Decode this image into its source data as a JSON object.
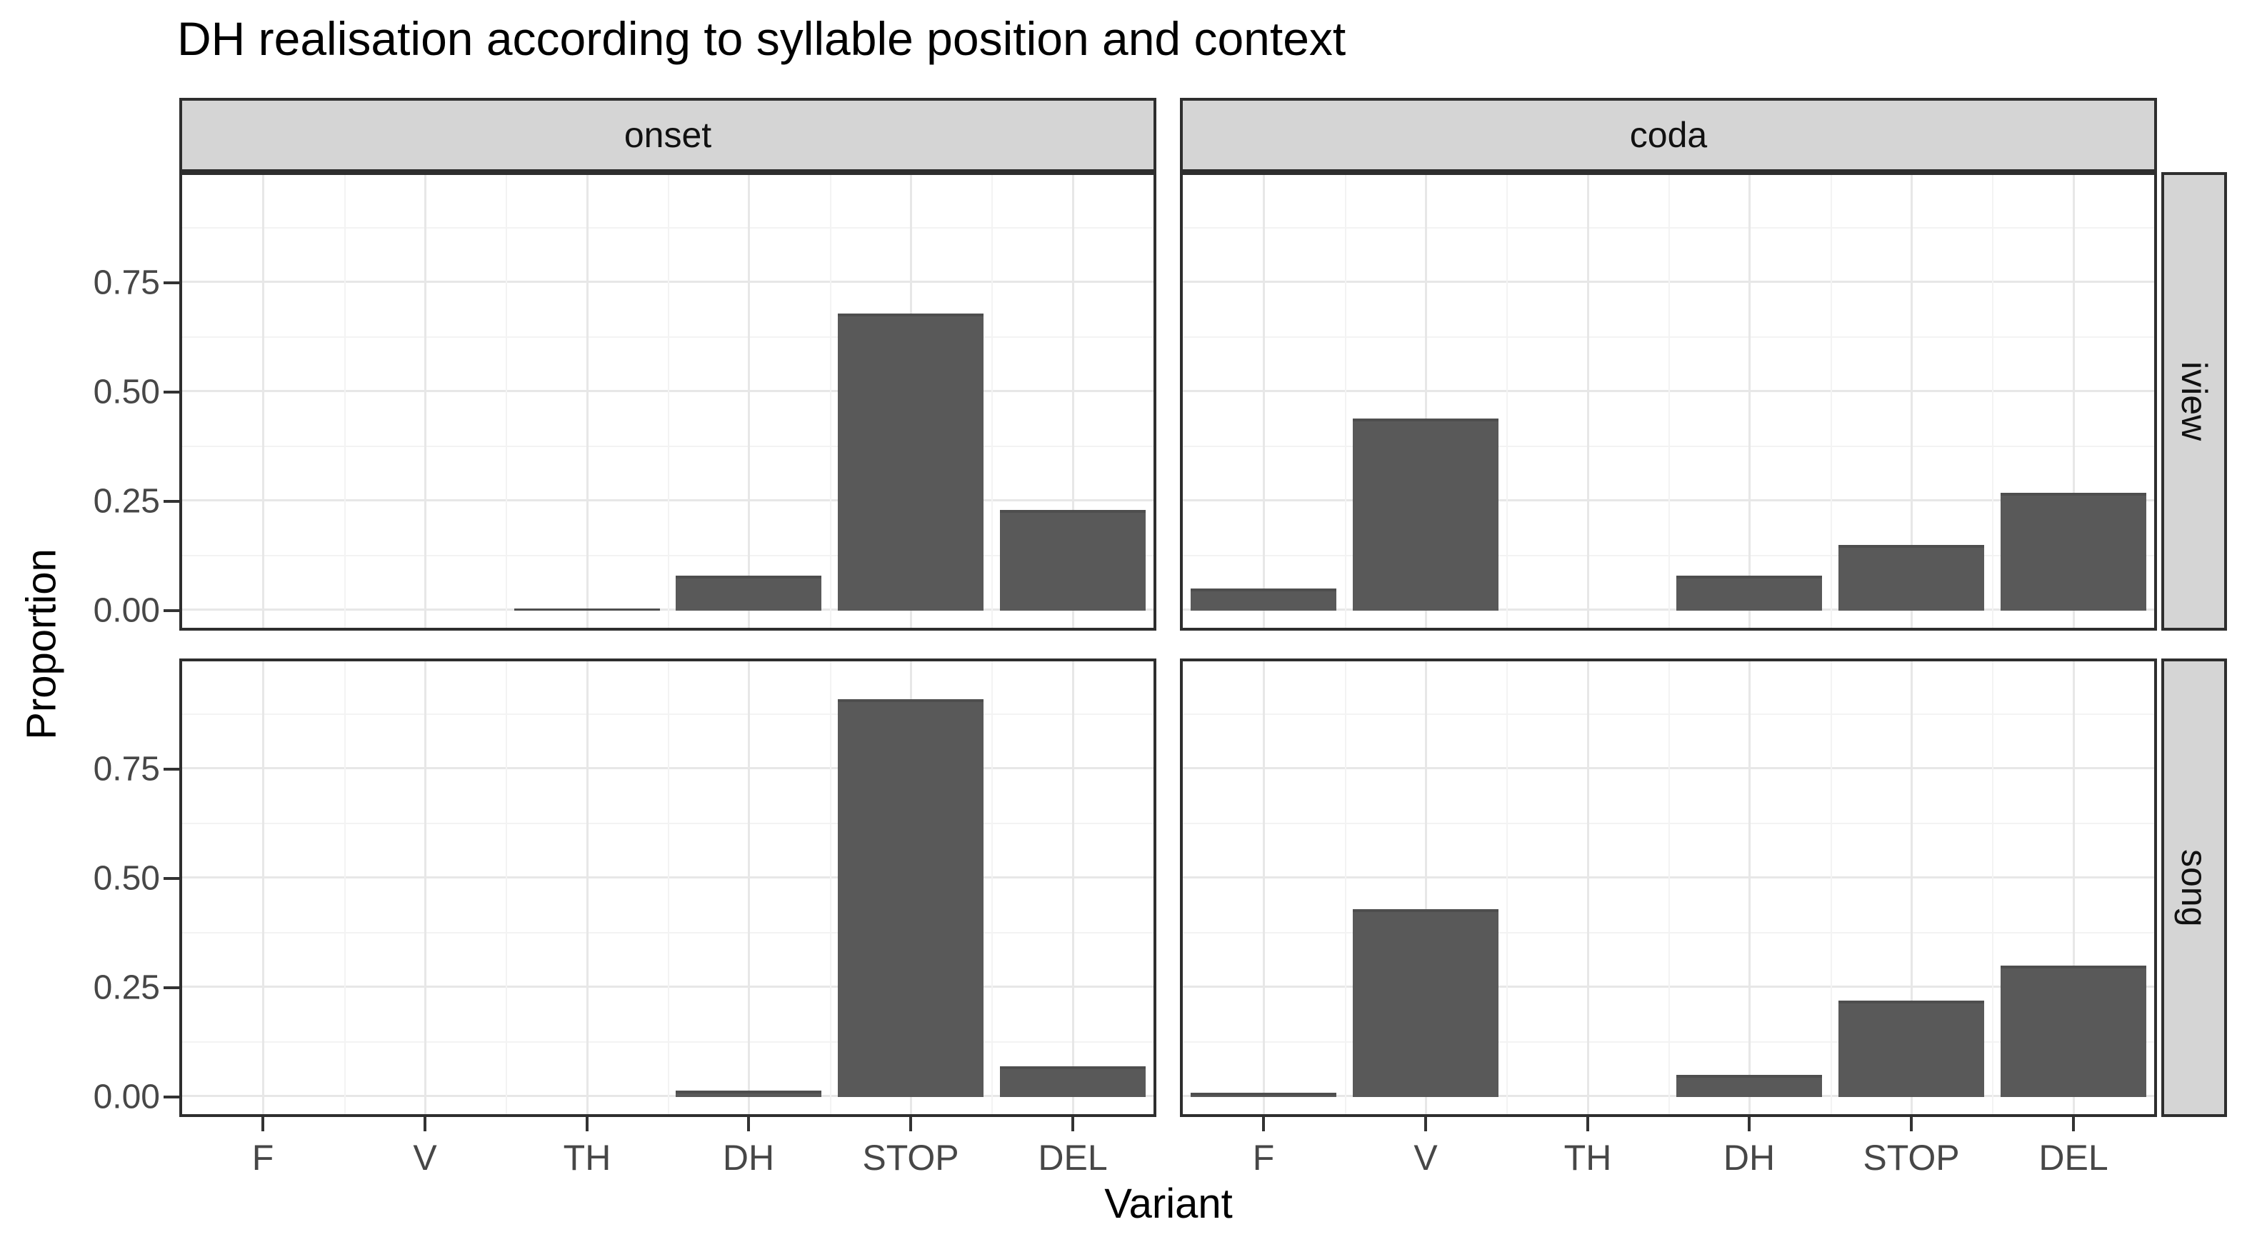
{
  "title": "DH realisation according to syllable position and context",
  "x_axis": {
    "label": "Variant",
    "tick_labels": [
      "F",
      "V",
      "TH",
      "DH",
      "STOP",
      "DEL"
    ]
  },
  "y_axis": {
    "label": "Proportion",
    "tick_labels": [
      "0.00",
      "0.25",
      "0.50",
      "0.75"
    ]
  },
  "facets": {
    "columns": [
      "onset",
      "coda"
    ],
    "rows": [
      "iview",
      "song"
    ]
  },
  "colors": {
    "bar_fill": "#595959",
    "strip_fill": "#d5d5d5",
    "panel_border": "#2e2e2e",
    "grid_major": "#e7e7e7",
    "grid_minor": "#f3f3f3",
    "tick_label": "#474747"
  },
  "chart_data": {
    "type": "bar",
    "title": "DH realisation according to syllable position and context",
    "xlabel": "Variant",
    "ylabel": "Proportion",
    "categories": [
      "F",
      "V",
      "TH",
      "DH",
      "STOP",
      "DEL"
    ],
    "facet_columns": [
      "onset",
      "coda"
    ],
    "facet_rows": [
      "iview",
      "song"
    ],
    "panels": [
      {
        "column": "onset",
        "row": "iview",
        "values": [
          0,
          0,
          0.005,
          0.08,
          0.68,
          0.23
        ]
      },
      {
        "column": "coda",
        "row": "iview",
        "values": [
          0.05,
          0.44,
          0,
          0.08,
          0.15,
          0.27
        ]
      },
      {
        "column": "onset",
        "row": "song",
        "values": [
          0,
          0,
          0,
          0.015,
          0.91,
          0.07
        ]
      },
      {
        "column": "coda",
        "row": "song",
        "values": [
          0.01,
          0.43,
          0,
          0.05,
          0.22,
          0.3
        ]
      }
    ],
    "ylim": [
      0,
      1
    ],
    "y_major_ticks": [
      0,
      0.25,
      0.5,
      0.75
    ],
    "y_minor_ticks": [
      0.125,
      0.375,
      0.625,
      0.875
    ],
    "grid": true,
    "legend": "none",
    "bar_color": "#595959"
  }
}
